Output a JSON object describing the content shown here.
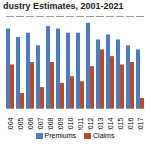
{
  "chart_data": {
    "type": "bar",
    "title": "dustry Estimates, 2001-2021",
    "categories": [
      "2004",
      "2005",
      "2006",
      "2007",
      "2008",
      "2009",
      "2010",
      "2011",
      "2012",
      "2013",
      "2014",
      "2015",
      "2016",
      "2017"
    ],
    "series": [
      {
        "name": "Premiums",
        "color": "#4e7cc0",
        "values": [
          9.5,
          8.5,
          9.0,
          7.5,
          9.8,
          9.5,
          9.0,
          9.0,
          10.2,
          8.2,
          8.8,
          8.2,
          7.5,
          7.0
        ]
      },
      {
        "name": "Claims",
        "color": "#b84c2a",
        "values": [
          5.2,
          1.8,
          5.5,
          2.5,
          5.5,
          3.0,
          3.8,
          3.2,
          5.0,
          7.0,
          6.2,
          5.2,
          5.5,
          1.2
        ]
      }
    ],
    "ylim": [
      0,
      11
    ],
    "yticks": [],
    "grid": false,
    "tick_labels": "x",
    "legend": "bottom"
  }
}
